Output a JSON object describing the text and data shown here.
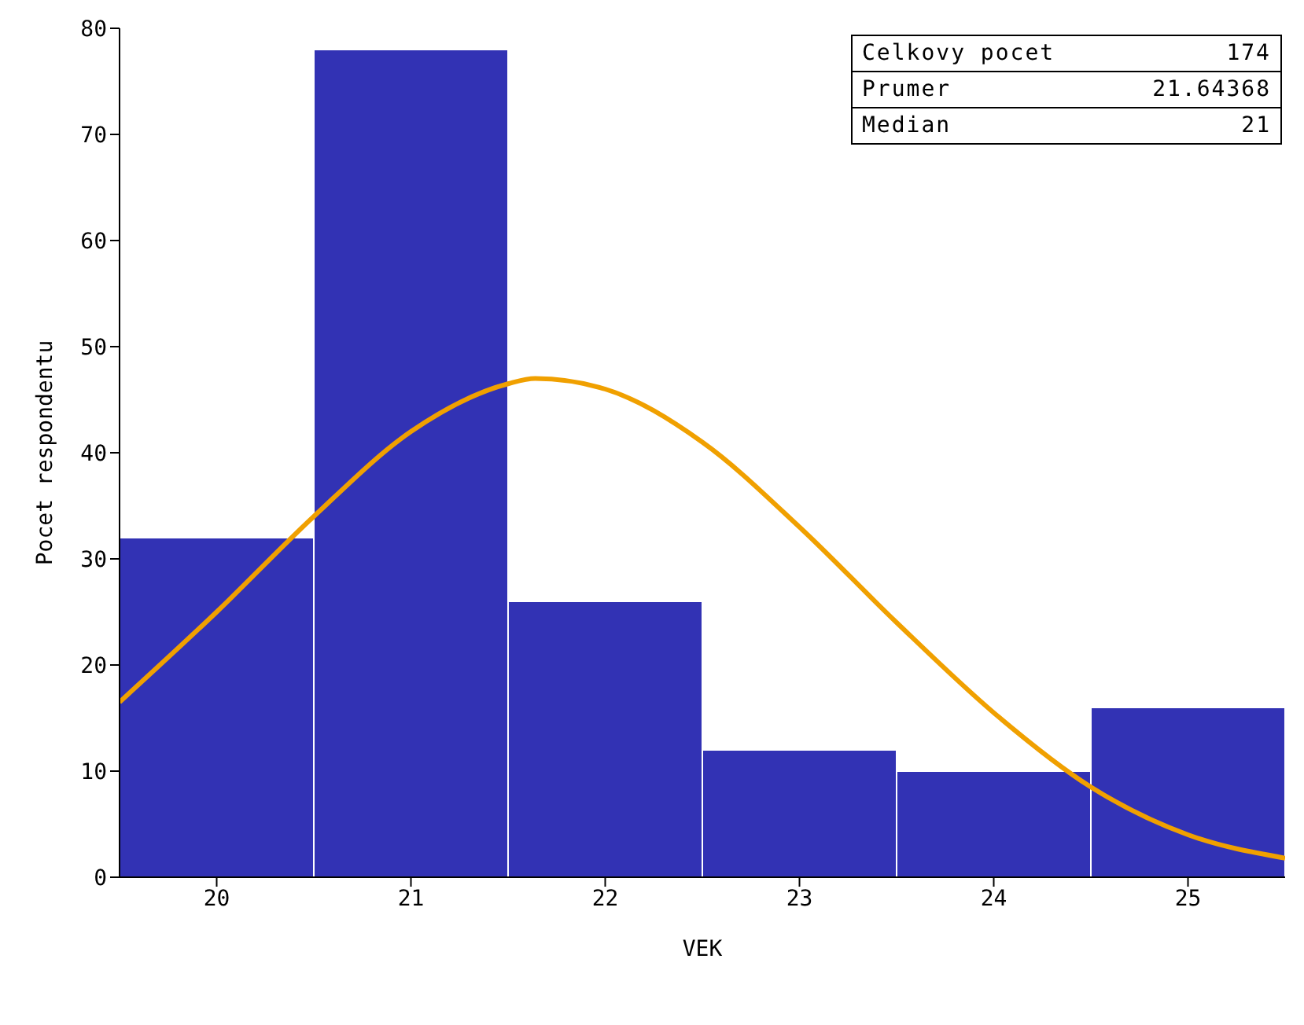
{
  "chart_data": {
    "type": "histogram",
    "xlabel": "VEK",
    "ylabel": "Pocet respondentu",
    "bins": [
      19.5,
      20.5,
      21.5,
      22.5,
      23.5,
      24.5,
      25.5
    ],
    "values": [
      32,
      78,
      26,
      12,
      10,
      16
    ],
    "color": "#3232b4",
    "series": [
      {
        "type": "line",
        "color": "#f0a000",
        "x": [
          19.5,
          20,
          20.5,
          21,
          21.5,
          21.64,
          22,
          22.5,
          23,
          23.5,
          24,
          24.5,
          25,
          25.5
        ],
        "values": [
          16.5,
          25,
          34,
          42,
          46.5,
          47,
          46,
          41,
          33,
          24,
          15.5,
          8.5,
          4,
          1.8
        ]
      }
    ],
    "xlim": [
      19.5,
      25.5
    ],
    "xticks": [
      20,
      21,
      22,
      23,
      24,
      25
    ],
    "ylim": [
      0,
      80
    ],
    "yticks": [
      0,
      10,
      20,
      30,
      40,
      50,
      60,
      70,
      80
    ],
    "marker": "none",
    "line_style": "solid",
    "annotations": [
      "Celkovy pocet 174",
      "Prumer 21.64368",
      "Median 21"
    ]
  }
}
